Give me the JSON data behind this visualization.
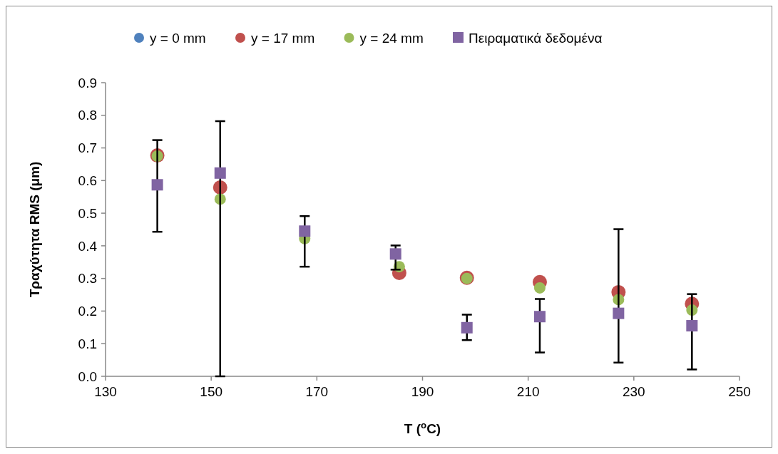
{
  "chart_data": {
    "type": "scatter",
    "xlabel": "T ($^{o}$C)",
    "ylabel": "Τραχύτητα RMS (μm)",
    "xlim": [
      130,
      250
    ],
    "xticks": [
      130,
      150,
      170,
      190,
      210,
      230,
      250
    ],
    "ylim": [
      0,
      0.9
    ],
    "yticks": [
      {
        "value": 0,
        "label": "0.0"
      },
      0.1,
      0.2,
      0.3,
      0.4,
      0.5,
      0.6,
      0.7,
      0.8,
      0.9
    ],
    "grid": false,
    "legend": "top",
    "x": [
      139.8,
      151.7,
      167.7,
      185.6,
      198.4,
      212.2,
      227.1,
      241.0
    ],
    "series": [
      {
        "name": "y = 0 mm",
        "color": "#4f81bd",
        "marker": "circle",
        "values": [
          null,
          null,
          null,
          null,
          null,
          null,
          null,
          null
        ]
      },
      {
        "name": "y = 17 mm",
        "color": "#c0504d",
        "marker": "circle",
        "values": [
          0.677,
          0.579,
          null,
          0.317,
          0.302,
          0.289,
          0.258,
          0.222
        ]
      },
      {
        "name": "y = 24 mm",
        "color": "#9bbb59",
        "marker": "circle",
        "values": [
          0.675,
          0.543,
          0.422,
          0.336,
          0.3,
          0.271,
          0.235,
          0.203
        ]
      },
      {
        "name": "Πειραματικά δεδομένα",
        "color": "#8064a2",
        "marker": "square",
        "x": [
          139.8,
          151.7,
          167.7,
          184.9,
          198.4,
          212.2,
          227.1,
          241.0
        ],
        "values": [
          0.587,
          0.623,
          0.445,
          0.375,
          0.149,
          0.183,
          0.193,
          0.155
        ],
        "errors": [
          [
            0.443,
            0.724
          ],
          [
            0.0,
            0.782
          ],
          [
            0.336,
            0.491
          ],
          [
            0.327,
            0.401
          ],
          [
            0.111,
            0.189
          ],
          [
            0.073,
            0.237
          ],
          [
            0.042,
            0.451
          ],
          [
            0.021,
            0.252
          ]
        ]
      }
    ]
  }
}
